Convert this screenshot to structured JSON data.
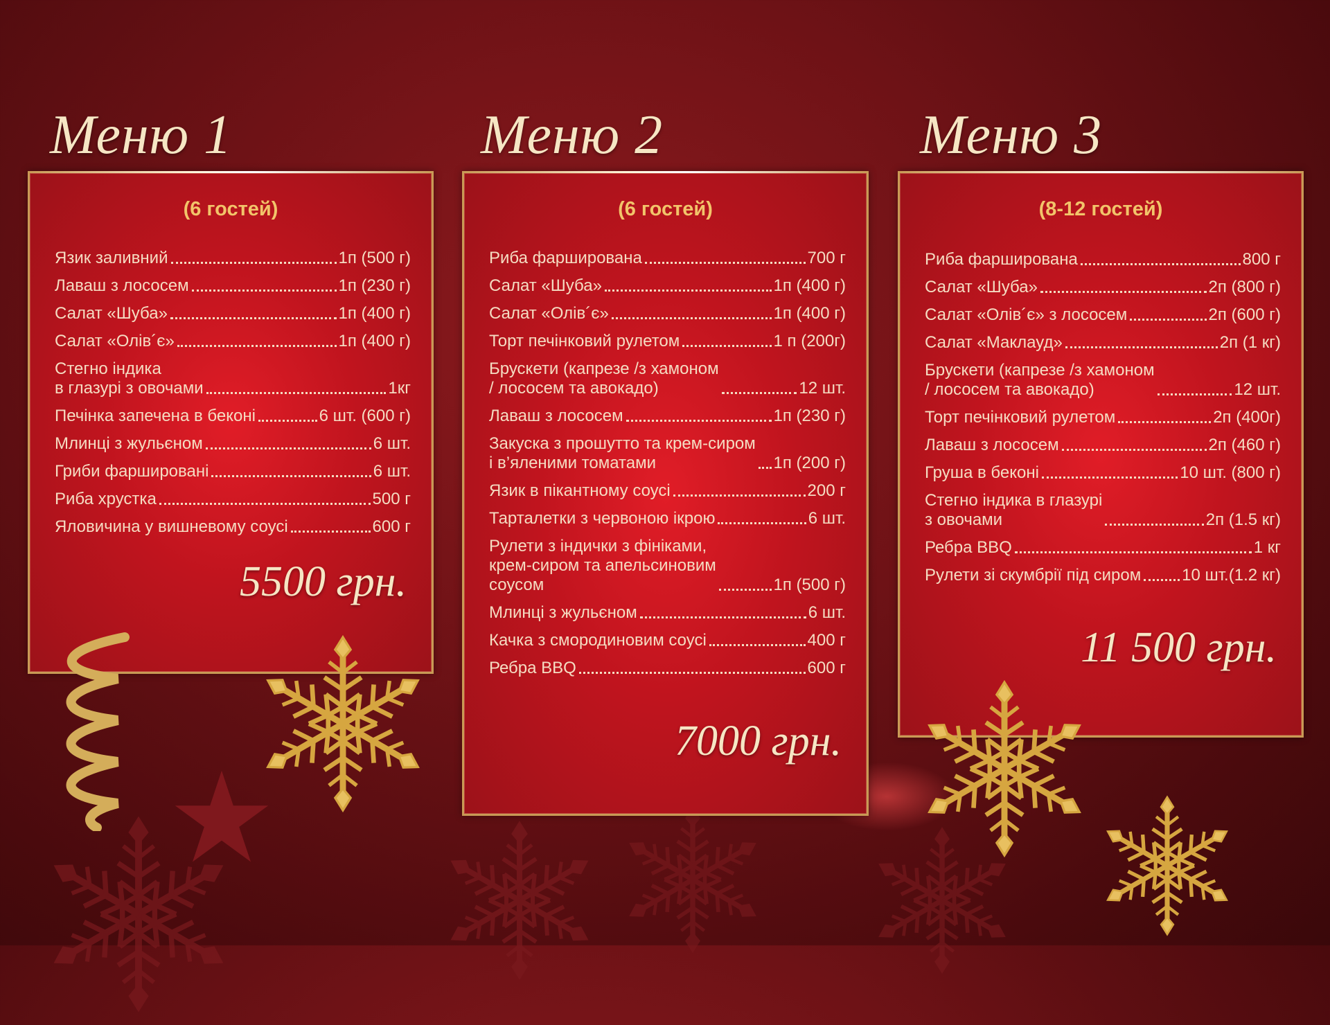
{
  "menus": [
    {
      "title": "Меню 1",
      "guests": "(6 гостей)",
      "items": [
        {
          "name": "Язик заливний",
          "qty": "1п (500 г)"
        },
        {
          "name": "Лаваш з лососем",
          "qty": "1п (230 г)"
        },
        {
          "name": "Салат «Шуба»",
          "qty": "1п (400 г)"
        },
        {
          "name": "Салат «Олів´є»",
          "qty": "1п (400 г)"
        },
        {
          "name": "Стегно індика\nв глазурі з овочами",
          "qty": "1кг"
        },
        {
          "name": "Печінка запечена в беконі",
          "qty": "6 шт. (600 г)"
        },
        {
          "name": "Млинці з жульєном",
          "qty": "6 шт."
        },
        {
          "name": "Гриби фаршировані",
          "qty": "6 шт."
        },
        {
          "name": "Риба хрустка",
          "qty": "500 г"
        },
        {
          "name": "Яловичина у вишневому соусі",
          "qty": "600 г"
        }
      ],
      "price": "5500 грн."
    },
    {
      "title": "Меню 2",
      "guests": "(6 гостей)",
      "items": [
        {
          "name": "Риба фарширована",
          "qty": "700 г"
        },
        {
          "name": "Салат «Шуба»",
          "qty": "1п (400 г)"
        },
        {
          "name": "Салат «Олів´є»",
          "qty": "1п (400 г)"
        },
        {
          "name": "Торт печінковий рулетом",
          "qty": "1 п (200г)"
        },
        {
          "name": "Брускети (капрезе /з хамоном\n/ лососем та авокадо)",
          "qty": "12 шт."
        },
        {
          "name": "Лаваш з лососем",
          "qty": "1п (230 г)"
        },
        {
          "name": "Закуска з прошутто та крем-сиром\nі в’яленими томатами",
          "qty": "1п (200 г)"
        },
        {
          "name": "Язик в пікантному соусі",
          "qty": "200 г"
        },
        {
          "name": "Тарталетки з червоною ікрою",
          "qty": "6 шт."
        },
        {
          "name": "Рулети з індички з фініками,\nкрем-сиром та апельсиновим\nсоусом",
          "qty": "1п (500 г)"
        },
        {
          "name": "Млинці з жульєном",
          "qty": "6 шт."
        },
        {
          "name": "Качка з смородиновим соусі",
          "qty": "400 г"
        },
        {
          "name": "Ребра BBQ",
          "qty": "600 г"
        }
      ],
      "price": "7000 грн."
    },
    {
      "title": "Меню 3",
      "guests": "(8-12 гостей)",
      "items": [
        {
          "name": "Риба фарширована",
          "qty": "800 г"
        },
        {
          "name": "Салат «Шуба»",
          "qty": "2п (800 г)"
        },
        {
          "name": "Салат «Олів´є» з лососем",
          "qty": "2п (600 г)"
        },
        {
          "name": "Салат «Маклауд»",
          "qty": "2п (1 кг)"
        },
        {
          "name": "Брускети (капрезе /з хамоном\n/ лососем та авокадо)",
          "qty": "12 шт."
        },
        {
          "name": "Торт печінковий рулетом",
          "qty": "2п (400г)"
        },
        {
          "name": "Лаваш з лососем",
          "qty": "2п (460 г)"
        },
        {
          "name": "Груша в беконі",
          "qty": "10 шт. (800 г)"
        },
        {
          "name": "Стегно індика в глазурі\nз овочами",
          "qty": "2п (1.5 кг)"
        },
        {
          "name": "Ребра BBQ",
          "qty": "1 кг"
        },
        {
          "name": "Рулети зі скумбрії під сиром",
          "qty": "10 шт.(1.2 кг)"
        }
      ],
      "price": "11 500 грн."
    }
  ],
  "colors": {
    "panel": "#c0141e",
    "frame": "#c99a55",
    "gold": "#f2c46a",
    "text": "#f5dcc2",
    "background": "#6e1216"
  },
  "decorations": [
    "snowflake-icon",
    "ribbon-icon",
    "star-icon"
  ]
}
